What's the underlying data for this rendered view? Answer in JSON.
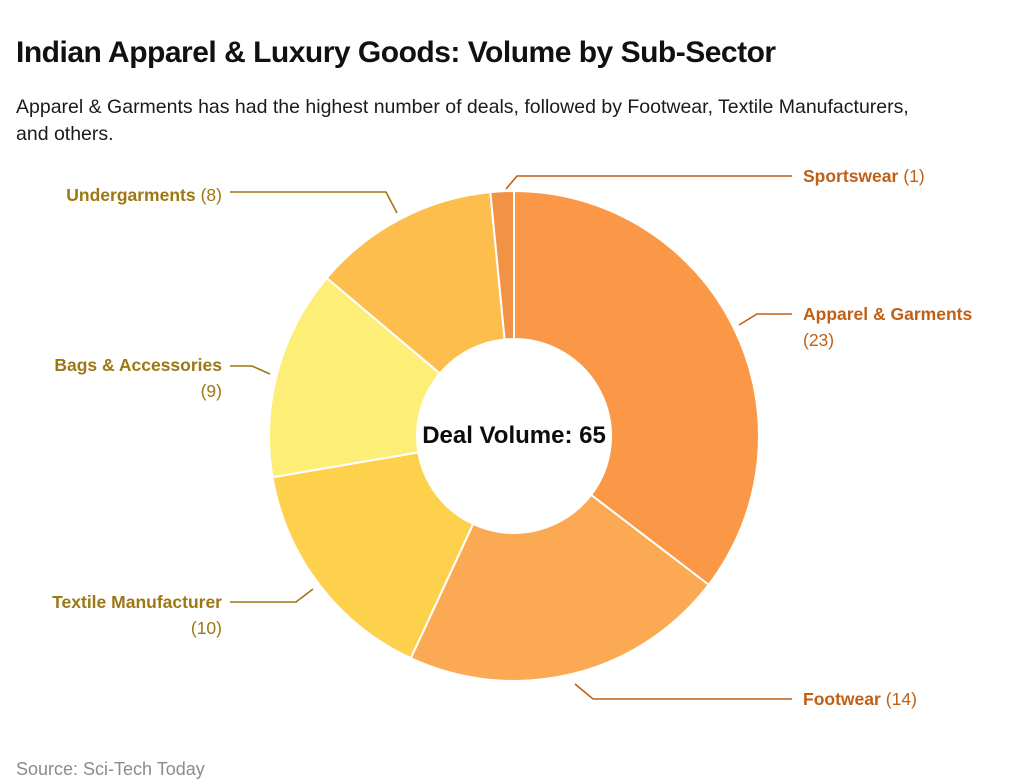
{
  "header": {
    "title": "Indian Apparel & Luxury Goods: Volume by Sub-Sector",
    "subtitle": "Apparel & Garments has had the highest number of deals, followed by Footwear, Textile Manufacturers, and others."
  },
  "footer": {
    "source": "Source: Sci-Tech Today"
  },
  "center": {
    "label": "Deal Volume: 65"
  },
  "callouts": {
    "sportswear": {
      "name": "Sportswear",
      "value": "(1)"
    },
    "apparel": {
      "name": "Apparel & Garments",
      "value": "(23)"
    },
    "footwear": {
      "name": "Footwear",
      "value": "(14)"
    },
    "undergarments": {
      "name": "Undergarments",
      "value": "(8)"
    },
    "bags": {
      "name": "Bags & Accessories",
      "value": "(9)"
    },
    "textile": {
      "name": "Textile Manufacturer",
      "value": "(10)"
    }
  },
  "chart_data": {
    "type": "pie",
    "subtype": "donut",
    "title": "Indian Apparel & Luxury Goods: Volume by Sub-Sector",
    "center_label": "Deal Volume: 65",
    "total": 65,
    "start_angle_deg": 0,
    "direction": "clockwise",
    "legend_position": "callout-labels",
    "segments": [
      {
        "label": "Apparel & Garments",
        "value": 23,
        "color": "#fa9847"
      },
      {
        "label": "Footwear",
        "value": 14,
        "color": "#fca953"
      },
      {
        "label": "Textile Manufacturer",
        "value": 10,
        "color": "#fdd14b"
      },
      {
        "label": "Bags & Accessories",
        "value": 9,
        "color": "#fdee78"
      },
      {
        "label": "Undergarments",
        "value": 8,
        "color": "#fdbe4e"
      },
      {
        "label": "Sportswear",
        "value": 1,
        "color": "#f29245"
      }
    ],
    "label_colors": {
      "left_labels": "#9c7713",
      "right_labels": "#c05f16"
    }
  }
}
